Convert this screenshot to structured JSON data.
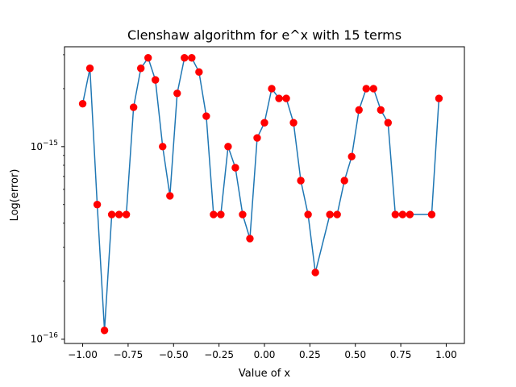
{
  "chart_data": {
    "type": "line",
    "title": "Clenshaw algorithm for e^x with 15 terms",
    "xlabel": "Value of x",
    "ylabel": "Log(error)",
    "xlim": [
      -1.1,
      1.1
    ],
    "ylim": [
      9.5e-17,
      3.3e-15
    ],
    "yscale": "log",
    "grid": false,
    "xticks": [
      -1.0,
      -0.75,
      -0.5,
      -0.25,
      0.0,
      0.25,
      0.5,
      0.75,
      1.0
    ],
    "xtick_labels": [
      "−1.00",
      "−0.75",
      "−0.50",
      "−0.25",
      "0.00",
      "0.25",
      "0.50",
      "0.75",
      "1.00"
    ],
    "yticks": [
      1e-16,
      1e-15
    ],
    "ytick_labels": [
      {
        "base": "10",
        "exp": "−16"
      },
      {
        "base": "10",
        "exp": "−15"
      }
    ],
    "line_color": "#1f77b4",
    "marker_color": "#ff0000",
    "series": [
      {
        "x": [
          -1.0,
          -0.96,
          -0.92,
          -0.88,
          -0.84,
          -0.8,
          -0.76,
          -0.72,
          -0.68,
          -0.64,
          -0.6,
          -0.56,
          -0.52,
          -0.48,
          -0.44,
          -0.4,
          -0.36,
          -0.32,
          -0.28,
          -0.24,
          -0.2,
          -0.16,
          -0.12,
          -0.08,
          -0.04,
          0.0,
          0.04,
          0.08,
          0.12,
          0.16,
          0.2,
          0.24,
          0.28,
          0.32,
          0.36,
          0.4,
          0.44,
          0.48,
          0.52,
          0.56,
          0.6,
          0.64,
          0.68,
          0.72,
          0.76,
          0.8,
          0.84,
          0.88,
          0.92,
          0.96,
          1.0
        ],
        "y": [
          1.67e-15,
          2.55e-15,
          5e-16,
          1.11e-16,
          4.44e-16,
          4.44e-16,
          4.44e-16,
          1.6e-15,
          2.55e-15,
          2.89e-15,
          2.22e-15,
          1e-15,
          5.55e-16,
          1.89e-15,
          2.89e-15,
          2.89e-15,
          2.44e-15,
          1.44e-15,
          4.44e-16,
          4.44e-16,
          1e-15,
          7.77e-16,
          4.44e-16,
          3.33e-16,
          1.11e-15,
          1.33e-15,
          2e-15,
          1.78e-15,
          1.78e-15,
          1.33e-15,
          6.66e-16,
          4.44e-16,
          2.22e-16,
          null,
          4.44e-16,
          4.44e-16,
          6.66e-16,
          8.88e-16,
          1.55e-15,
          2e-15,
          2e-15,
          1.55e-15,
          1.33e-15,
          4.44e-16,
          4.44e-16,
          4.44e-16,
          null,
          null,
          4.44e-16,
          1.78e-15,
          null
        ]
      }
    ]
  }
}
